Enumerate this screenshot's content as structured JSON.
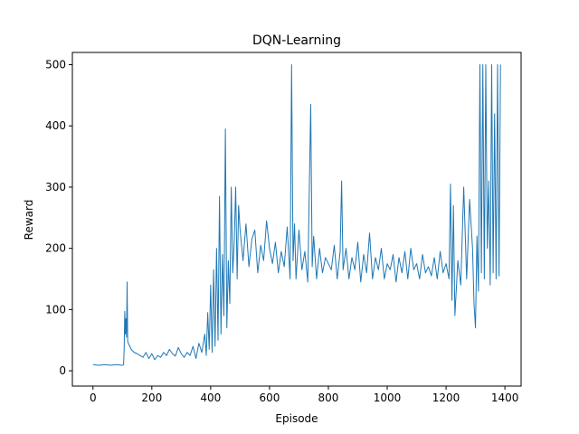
{
  "chart_data": {
    "type": "line",
    "title": "DQN-Learning",
    "xlabel": "Episode",
    "ylabel": "Reward",
    "xlim": [
      -70,
      1455
    ],
    "ylim": [
      -25,
      520
    ],
    "xticks": [
      0,
      200,
      400,
      600,
      800,
      1000,
      1200,
      1400
    ],
    "yticks": [
      0,
      100,
      200,
      300,
      400,
      500
    ],
    "grid": false,
    "legend": "none",
    "series_color": "#1f77b4",
    "series": [
      {
        "x": [
          0,
          20,
          40,
          60,
          80,
          100,
          104,
          106,
          108,
          110,
          112,
          114,
          116,
          118,
          120,
          125,
          130,
          140,
          150,
          160,
          170,
          180,
          190,
          200,
          210,
          220,
          230,
          240,
          250,
          260,
          270,
          280,
          290,
          300,
          310,
          320,
          330,
          340,
          350,
          360,
          370,
          380,
          385,
          390,
          395,
          400,
          405,
          410,
          415,
          420,
          425,
          430,
          435,
          440,
          445,
          450,
          455,
          460,
          465,
          470,
          475,
          480,
          485,
          490,
          495,
          500,
          510,
          520,
          530,
          540,
          550,
          560,
          570,
          580,
          590,
          600,
          610,
          620,
          630,
          640,
          650,
          660,
          670,
          675,
          680,
          685,
          690,
          700,
          710,
          720,
          730,
          740,
          745,
          750,
          760,
          770,
          780,
          790,
          800,
          810,
          820,
          830,
          840,
          845,
          850,
          860,
          870,
          880,
          890,
          900,
          910,
          920,
          930,
          940,
          950,
          960,
          970,
          980,
          990,
          1000,
          1010,
          1020,
          1030,
          1040,
          1050,
          1060,
          1070,
          1080,
          1090,
          1100,
          1110,
          1120,
          1130,
          1140,
          1150,
          1160,
          1170,
          1180,
          1190,
          1200,
          1210,
          1215,
          1220,
          1225,
          1230,
          1240,
          1250,
          1260,
          1270,
          1280,
          1290,
          1295,
          1300,
          1305,
          1310,
          1315,
          1320,
          1325,
          1330,
          1335,
          1340,
          1345,
          1350,
          1355,
          1360,
          1365,
          1370,
          1375,
          1380,
          1385
        ],
        "y": [
          10,
          9,
          10,
          9,
          10,
          9,
          10,
          35,
          97,
          60,
          85,
          55,
          145,
          48,
          45,
          40,
          35,
          30,
          28,
          25,
          22,
          30,
          20,
          28,
          18,
          25,
          22,
          30,
          25,
          35,
          28,
          24,
          38,
          28,
          22,
          30,
          25,
          40,
          20,
          45,
          30,
          60,
          25,
          95,
          35,
          140,
          30,
          165,
          40,
          200,
          50,
          285,
          60,
          190,
          90,
          395,
          70,
          180,
          110,
          300,
          160,
          210,
          300,
          150,
          270,
          230,
          180,
          240,
          170,
          215,
          230,
          160,
          205,
          180,
          245,
          200,
          175,
          210,
          160,
          195,
          170,
          235,
          150,
          500,
          180,
          240,
          150,
          230,
          165,
          195,
          145,
          435,
          170,
          220,
          150,
          200,
          160,
          185,
          175,
          165,
          205,
          150,
          195,
          310,
          165,
          200,
          150,
          185,
          165,
          210,
          145,
          190,
          160,
          225,
          150,
          185,
          165,
          200,
          150,
          175,
          165,
          190,
          145,
          185,
          160,
          195,
          150,
          200,
          165,
          175,
          150,
          190,
          160,
          170,
          155,
          185,
          150,
          195,
          160,
          175,
          150,
          305,
          115,
          270,
          90,
          180,
          140,
          300,
          150,
          280,
          200,
          110,
          70,
          220,
          130,
          500,
          160,
          500,
          150,
          500,
          200,
          310,
          140,
          500,
          160,
          420,
          150,
          500,
          155,
          500
        ]
      }
    ]
  }
}
